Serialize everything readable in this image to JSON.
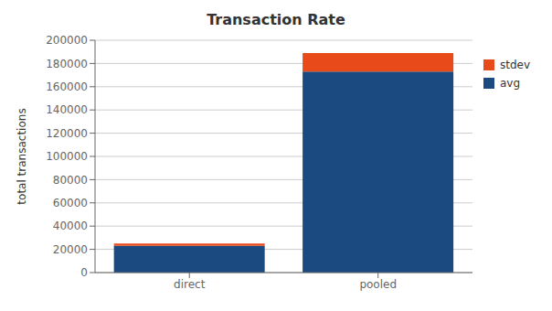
{
  "chart_data": {
    "type": "bar",
    "title": "Transaction Rate",
    "ylabel": "total transactions",
    "categories": [
      "direct",
      "pooled"
    ],
    "series": [
      {
        "name": "avg",
        "color": "#1a4a80",
        "values": [
          23000,
          173000
        ]
      },
      {
        "name": "stdev",
        "color": "#e84a1a",
        "values": [
          2000,
          16000
        ]
      }
    ],
    "stacked": true,
    "ylim": [
      0,
      200000
    ],
    "yticks": [
      0,
      20000,
      40000,
      60000,
      80000,
      100000,
      120000,
      140000,
      160000,
      180000,
      200000
    ],
    "grid": true,
    "legend": "upper right"
  }
}
